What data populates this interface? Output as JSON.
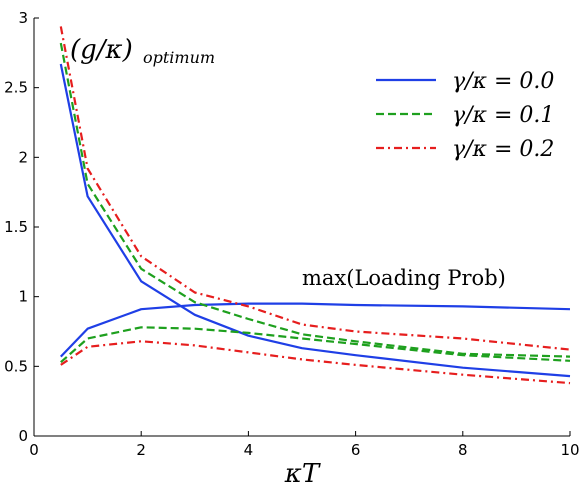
{
  "chart_data": {
    "type": "line",
    "xlabel": "κT",
    "ylabel": "",
    "xlim": [
      0,
      10
    ],
    "ylim": [
      0,
      3
    ],
    "x_ticks": [
      "0",
      "2",
      "4",
      "6",
      "8",
      "10"
    ],
    "y_ticks": [
      "0",
      "0.5",
      "1",
      "1.5",
      "2",
      "2.5",
      "3"
    ],
    "grid": false,
    "legend_position": "top-right",
    "annotations": {
      "optimum_main": "(g/κ)",
      "optimum_sub": "optimum",
      "max_loading": "max(Loading Prob)"
    },
    "series": [
      {
        "name": "γ/κ = 0.0",
        "color": "#1f3fe6",
        "dash": "solid",
        "curves": {
          "g_optimum": [
            [
              0.5,
              2.67
            ],
            [
              1,
              1.72
            ],
            [
              2,
              1.11
            ],
            [
              3,
              0.87
            ],
            [
              4,
              0.72
            ],
            [
              5,
              0.63
            ],
            [
              6,
              0.58
            ],
            [
              8,
              0.49
            ],
            [
              10,
              0.43
            ]
          ],
          "max_loading_prob": [
            [
              0.5,
              0.57
            ],
            [
              1,
              0.77
            ],
            [
              2,
              0.91
            ],
            [
              3,
              0.94
            ],
            [
              4,
              0.95
            ],
            [
              5,
              0.95
            ],
            [
              6,
              0.94
            ],
            [
              8,
              0.93
            ],
            [
              10,
              0.91
            ]
          ]
        }
      },
      {
        "name": "γ/κ = 0.1",
        "color": "#1ea01e",
        "dash": "dashed",
        "curves": {
          "g_optimum": [
            [
              0.5,
              2.82
            ],
            [
              1,
              1.81
            ],
            [
              2,
              1.2
            ],
            [
              3,
              0.96
            ],
            [
              4,
              0.84
            ],
            [
              5,
              0.73
            ],
            [
              6,
              0.68
            ],
            [
              8,
              0.59
            ],
            [
              10,
              0.57
            ]
          ],
          "max_loading_prob": [
            [
              0.5,
              0.53
            ],
            [
              1,
              0.7
            ],
            [
              2,
              0.78
            ],
            [
              3,
              0.77
            ],
            [
              4,
              0.74
            ],
            [
              5,
              0.7
            ],
            [
              6,
              0.66
            ],
            [
              8,
              0.58
            ],
            [
              10,
              0.54
            ]
          ]
        }
      },
      {
        "name": "γ/κ = 0.2",
        "color": "#e61e1e",
        "dash": "dashdot",
        "curves": {
          "g_optimum": [
            [
              0.5,
              2.94
            ],
            [
              1,
              1.92
            ],
            [
              2,
              1.29
            ],
            [
              3,
              1.03
            ],
            [
              4,
              0.93
            ],
            [
              5,
              0.8
            ],
            [
              6,
              0.75
            ],
            [
              8,
              0.7
            ],
            [
              10,
              0.62
            ]
          ],
          "max_loading_prob": [
            [
              0.5,
              0.51
            ],
            [
              1,
              0.64
            ],
            [
              2,
              0.68
            ],
            [
              3,
              0.65
            ],
            [
              4,
              0.6
            ],
            [
              5,
              0.55
            ],
            [
              6,
              0.51
            ],
            [
              8,
              0.44
            ],
            [
              10,
              0.38
            ]
          ]
        }
      }
    ]
  }
}
